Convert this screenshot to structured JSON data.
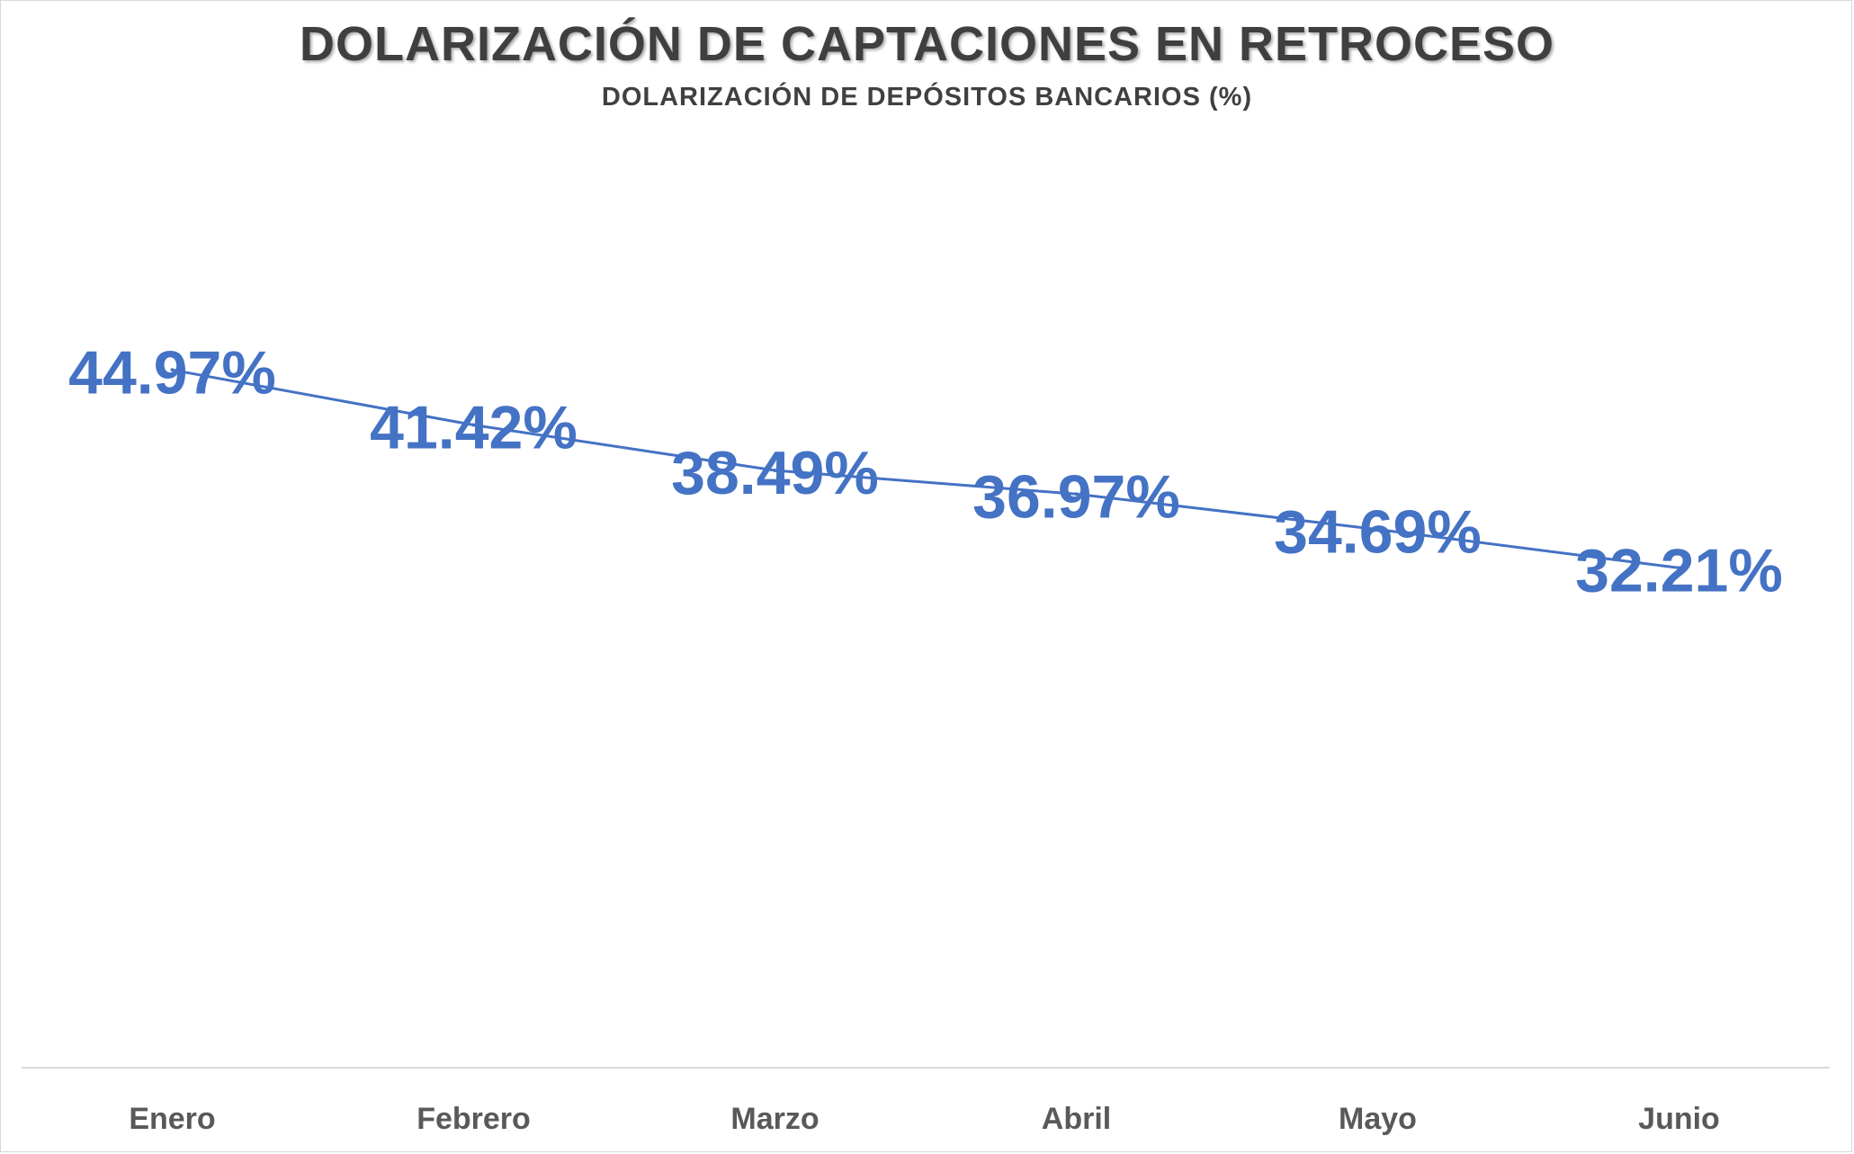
{
  "chart_data": {
    "type": "line",
    "title": "DOLARIZACIÓN DE CAPTACIONES EN RETROCESO",
    "subtitle": "DOLARIZACIÓN DE DEPÓSITOS BANCARIOS (%)",
    "xlabel": "",
    "ylabel": "",
    "categories": [
      "Enero",
      "Febrero",
      "Marzo",
      "Abril",
      "Mayo",
      "Junio"
    ],
    "series": [
      {
        "values": [
          44.97,
          41.42,
          38.49,
          36.97,
          34.69,
          32.21
        ],
        "labels": [
          "44.97%",
          "41.42%",
          "38.49%",
          "36.97%",
          "34.69%",
          "32.21%"
        ],
        "color": "#4472c4"
      }
    ],
    "ylim": [
      0,
      60
    ],
    "grid": false,
    "legend": "none",
    "axis_color": "#d9d9d9",
    "tick_label_color": "#595959"
  }
}
